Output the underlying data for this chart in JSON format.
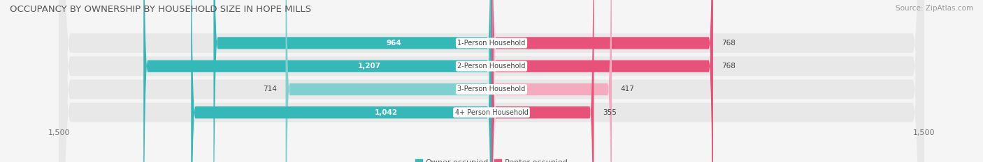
{
  "title": "OCCUPANCY BY OWNERSHIP BY HOUSEHOLD SIZE IN HOPE MILLS",
  "source": "Source: ZipAtlas.com",
  "categories": [
    "1-Person Household",
    "2-Person Household",
    "3-Person Household",
    "4+ Person Household"
  ],
  "owner_values": [
    964,
    1207,
    714,
    1042
  ],
  "renter_values": [
    768,
    768,
    417,
    355
  ],
  "owner_color_dark": "#35b8b8",
  "owner_color_light": "#80d0d0",
  "renter_color_dark": "#e8527a",
  "renter_color_light": "#f4aabf",
  "dark_rows": [
    0,
    1,
    3
  ],
  "light_rows": [
    2
  ],
  "xlim": 1500,
  "bar_height": 0.52,
  "background_color": "#f5f5f5",
  "row_bg_color": "#e8e8e8",
  "label_bg_color": "#ffffff",
  "title_fontsize": 9.5,
  "tick_fontsize": 8,
  "label_fontsize": 7,
  "value_fontsize": 7.5,
  "source_fontsize": 7.5
}
